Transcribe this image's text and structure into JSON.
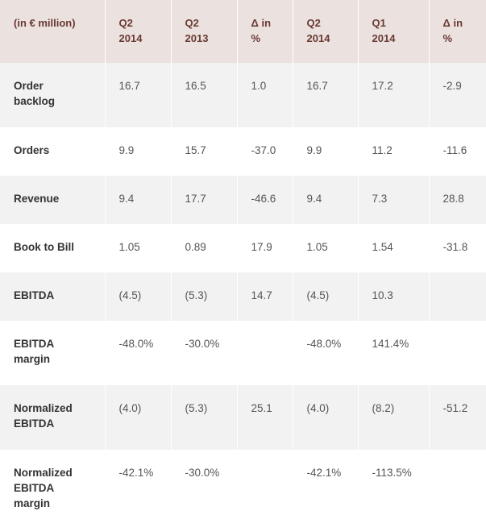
{
  "table": {
    "headers": [
      "(in € million)",
      "Q2\n2014",
      "Q2\n2013",
      "Δ in\n%",
      "Q2\n2014",
      "Q1\n2014",
      "Δ in\n%"
    ],
    "rows": [
      {
        "label": "Order\nbacklog",
        "cells": [
          "16.7",
          "16.5",
          "1.0",
          "16.7",
          "17.2",
          "-2.9"
        ]
      },
      {
        "label": "Orders",
        "cells": [
          "9.9",
          "15.7",
          "-37.0",
          "9.9",
          "11.2",
          "-11.6"
        ]
      },
      {
        "label": "Revenue",
        "cells": [
          "9.4",
          "17.7",
          "-46.6",
          "9.4",
          "7.3",
          "28.8"
        ]
      },
      {
        "label": "Book to Bill",
        "cells": [
          "1.05",
          "0.89",
          "17.9",
          "1.05",
          "1.54",
          "-31.8"
        ]
      },
      {
        "label": "EBITDA",
        "cells": [
          "(4.5)",
          "(5.3)",
          "14.7",
          "(4.5)",
          "10.3",
          ""
        ]
      },
      {
        "label": "EBITDA\nmargin",
        "cells": [
          "-48.0%",
          "-30.0%",
          "",
          "-48.0%",
          "141.4%",
          ""
        ]
      },
      {
        "label": "Normalized\nEBITDA",
        "cells": [
          "(4.0)",
          "(5.3)",
          "25.1",
          "(4.0)",
          "(8.2)",
          "-51.2"
        ]
      },
      {
        "label": "Normalized\nEBITDA\nmargin",
        "cells": [
          "-42.1%",
          "-30.0%",
          "",
          "-42.1%",
          "-113.5%",
          ""
        ]
      }
    ]
  },
  "colors": {
    "header_bg": "#ebe1df",
    "header_text": "#6a3a33",
    "shaded_row_bg": "#f2f2f2"
  }
}
